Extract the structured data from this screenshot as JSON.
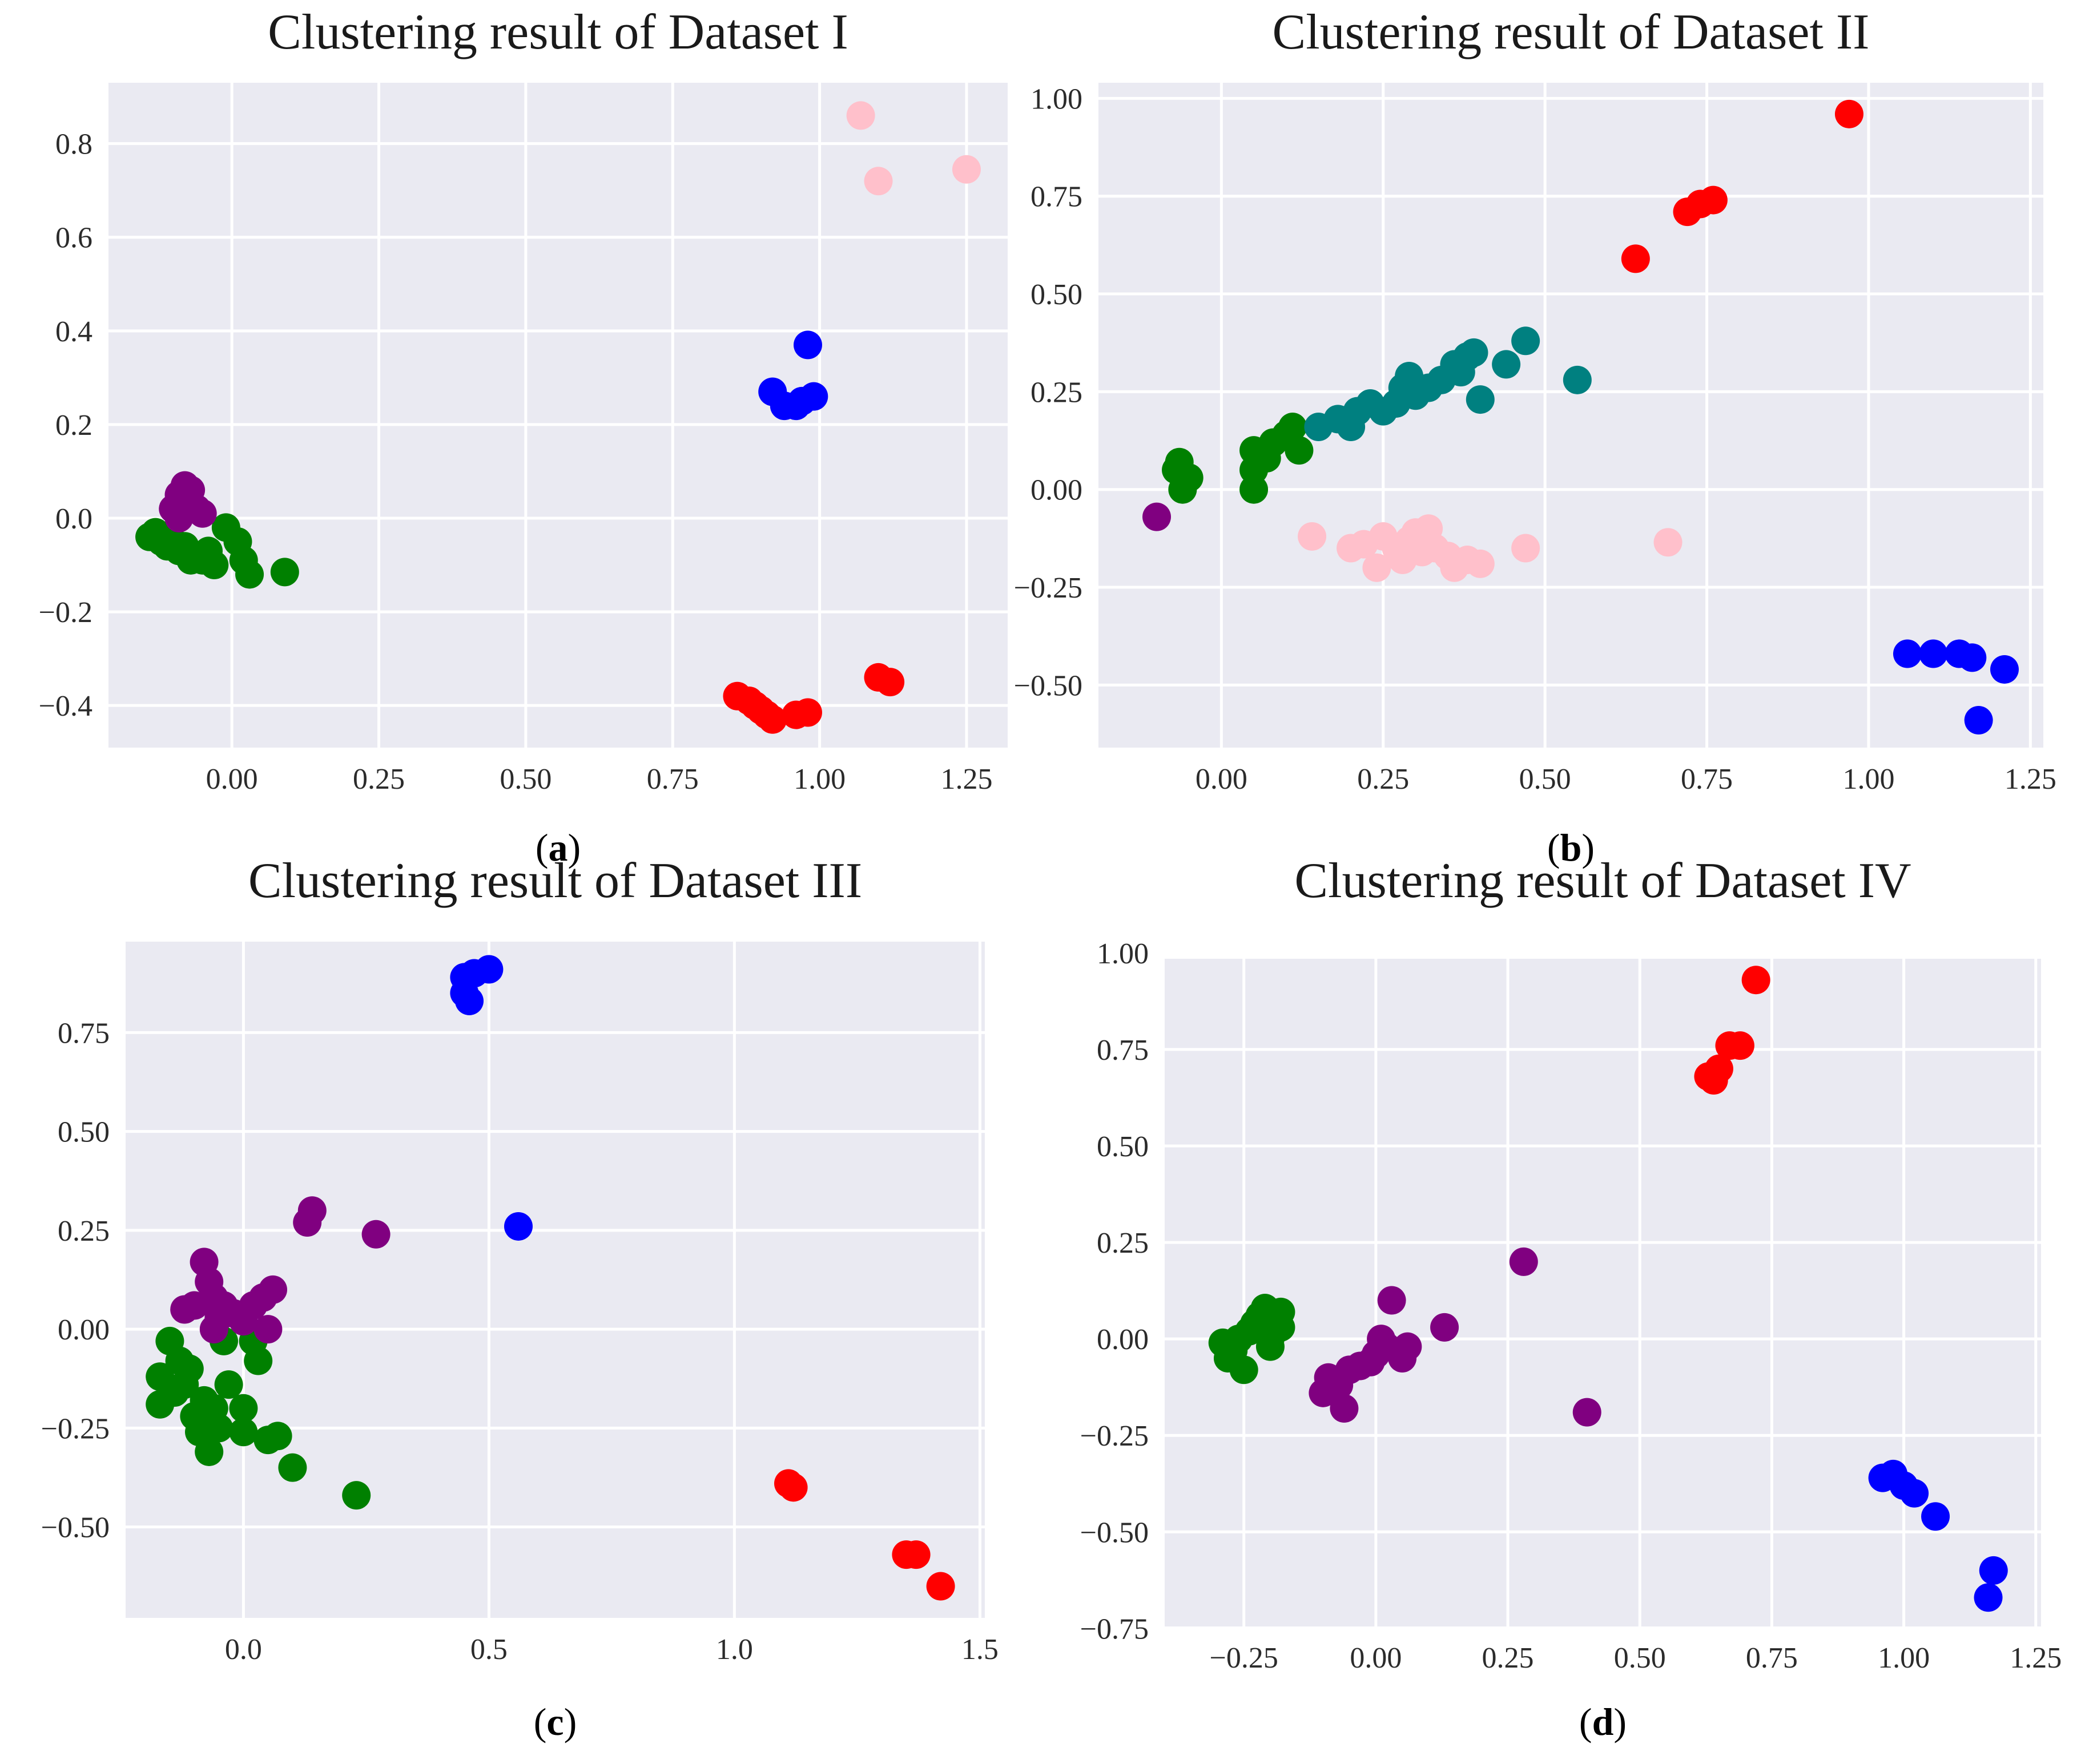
{
  "colors": {
    "background": "#eaeaf2",
    "grid": "#ffffff",
    "green": "#008000",
    "purple": "#800080",
    "blue": "#0000ff",
    "red": "#ff0000",
    "pink": "#ffc0cb",
    "teal": "#008080"
  },
  "chart_data": [
    {
      "type": "scatter",
      "id": "a",
      "title": "Clustering result of Dataset I",
      "caption_letter": "a",
      "xlim": [
        -0.21,
        1.32
      ],
      "ylim": [
        -0.49,
        0.93
      ],
      "xticks": [
        0.0,
        0.25,
        0.5,
        0.75,
        1.0,
        1.25
      ],
      "xtick_labels": [
        "0.00",
        "0.25",
        "0.50",
        "0.75",
        "1.00",
        "1.25"
      ],
      "yticks": [
        -0.4,
        -0.2,
        0.0,
        0.2,
        0.4,
        0.6,
        0.8
      ],
      "ytick_labels": [
        "−0.4",
        "−0.2",
        "0.0",
        "0.2",
        "0.4",
        "0.6",
        "0.8"
      ],
      "series": [
        {
          "name": "green",
          "color": "#008000",
          "points": [
            [
              -0.14,
              -0.04
            ],
            [
              -0.13,
              -0.03
            ],
            [
              -0.12,
              -0.05
            ],
            [
              -0.11,
              -0.06
            ],
            [
              -0.1,
              -0.05
            ],
            [
              -0.09,
              -0.07
            ],
            [
              -0.08,
              -0.06
            ],
            [
              -0.07,
              -0.09
            ],
            [
              -0.06,
              -0.08
            ],
            [
              -0.05,
              -0.09
            ],
            [
              -0.04,
              -0.07
            ],
            [
              -0.03,
              -0.1
            ],
            [
              -0.01,
              -0.02
            ],
            [
              0.01,
              -0.05
            ],
            [
              0.02,
              -0.09
            ],
            [
              0.03,
              -0.12
            ],
            [
              0.09,
              -0.115
            ]
          ]
        },
        {
          "name": "purple",
          "color": "#800080",
          "points": [
            [
              -0.1,
              0.02
            ],
            [
              -0.09,
              0.05
            ],
            [
              -0.08,
              0.07
            ],
            [
              -0.07,
              0.06
            ],
            [
              -0.08,
              0.03
            ],
            [
              -0.06,
              0.02
            ],
            [
              -0.05,
              0.01
            ],
            [
              -0.09,
              0.0
            ]
          ]
        },
        {
          "name": "blue",
          "color": "#0000ff",
          "points": [
            [
              0.92,
              0.27
            ],
            [
              0.94,
              0.24
            ],
            [
              0.96,
              0.24
            ],
            [
              0.97,
              0.25
            ],
            [
              0.98,
              0.37
            ],
            [
              0.99,
              0.26
            ]
          ]
        },
        {
          "name": "red",
          "color": "#ff0000",
          "points": [
            [
              0.86,
              -0.38
            ],
            [
              0.88,
              -0.39
            ],
            [
              0.89,
              -0.4
            ],
            [
              0.9,
              -0.41
            ],
            [
              0.91,
              -0.42
            ],
            [
              0.92,
              -0.43
            ],
            [
              0.96,
              -0.42
            ],
            [
              0.98,
              -0.415
            ],
            [
              1.1,
              -0.34
            ],
            [
              1.12,
              -0.35
            ]
          ]
        },
        {
          "name": "pink",
          "color": "#ffc0cb",
          "points": [
            [
              1.07,
              0.86
            ],
            [
              1.1,
              0.72
            ],
            [
              1.25,
              0.745
            ]
          ]
        }
      ]
    },
    {
      "type": "scatter",
      "id": "b",
      "title": "Clustering result of Dataset II",
      "caption_letter": "b",
      "xlim": [
        -0.19,
        1.27
      ],
      "ylim": [
        -0.66,
        1.04
      ],
      "xticks": [
        0.0,
        0.25,
        0.5,
        0.75,
        1.0,
        1.25
      ],
      "xtick_labels": [
        "0.00",
        "0.25",
        "0.50",
        "0.75",
        "1.00",
        "1.25"
      ],
      "yticks": [
        -0.5,
        -0.25,
        0.0,
        0.25,
        0.5,
        0.75,
        1.0
      ],
      "ytick_labels": [
        "−0.50",
        "−0.25",
        "0.00",
        "0.25",
        "0.50",
        "0.75",
        "1.00"
      ],
      "series": [
        {
          "name": "purple",
          "color": "#800080",
          "points": [
            [
              -0.1,
              -0.07
            ]
          ]
        },
        {
          "name": "green",
          "color": "#008000",
          "points": [
            [
              -0.07,
              0.05
            ],
            [
              -0.065,
              0.07
            ],
            [
              -0.06,
              0.0
            ],
            [
              -0.05,
              0.03
            ],
            [
              0.05,
              0.0
            ],
            [
              0.05,
              0.05
            ],
            [
              0.05,
              0.1
            ],
            [
              0.07,
              0.08
            ],
            [
              0.08,
              0.12
            ],
            [
              0.1,
              0.14
            ],
            [
              0.11,
              0.16
            ],
            [
              0.12,
              0.1
            ]
          ]
        },
        {
          "name": "teal",
          "color": "#008080",
          "points": [
            [
              0.15,
              0.16
            ],
            [
              0.18,
              0.18
            ],
            [
              0.2,
              0.16
            ],
            [
              0.21,
              0.2
            ],
            [
              0.23,
              0.22
            ],
            [
              0.25,
              0.2
            ],
            [
              0.27,
              0.22
            ],
            [
              0.28,
              0.26
            ],
            [
              0.29,
              0.29
            ],
            [
              0.3,
              0.24
            ],
            [
              0.32,
              0.26
            ],
            [
              0.34,
              0.28
            ],
            [
              0.36,
              0.32
            ],
            [
              0.37,
              0.3
            ],
            [
              0.38,
              0.34
            ],
            [
              0.39,
              0.35
            ],
            [
              0.4,
              0.23
            ],
            [
              0.44,
              0.32
            ],
            [
              0.47,
              0.38
            ],
            [
              0.55,
              0.28
            ]
          ]
        },
        {
          "name": "pink",
          "color": "#ffc0cb",
          "points": [
            [
              0.14,
              -0.12
            ],
            [
              0.2,
              -0.15
            ],
            [
              0.22,
              -0.14
            ],
            [
              0.24,
              -0.2
            ],
            [
              0.25,
              -0.12
            ],
            [
              0.27,
              -0.15
            ],
            [
              0.28,
              -0.18
            ],
            [
              0.29,
              -0.13
            ],
            [
              0.3,
              -0.11
            ],
            [
              0.31,
              -0.16
            ],
            [
              0.32,
              -0.1
            ],
            [
              0.33,
              -0.15
            ],
            [
              0.35,
              -0.17
            ],
            [
              0.36,
              -0.2
            ],
            [
              0.38,
              -0.18
            ],
            [
              0.4,
              -0.19
            ],
            [
              0.47,
              -0.15
            ],
            [
              0.69,
              -0.135
            ]
          ]
        },
        {
          "name": "red",
          "color": "#ff0000",
          "points": [
            [
              0.64,
              0.59
            ],
            [
              0.72,
              0.71
            ],
            [
              0.74,
              0.73
            ],
            [
              0.76,
              0.74
            ],
            [
              0.97,
              0.96
            ]
          ]
        },
        {
          "name": "blue",
          "color": "#0000ff",
          "points": [
            [
              1.06,
              -0.42
            ],
            [
              1.1,
              -0.42
            ],
            [
              1.14,
              -0.42
            ],
            [
              1.16,
              -0.43
            ],
            [
              1.17,
              -0.59
            ],
            [
              1.21,
              -0.46
            ]
          ]
        }
      ]
    },
    {
      "type": "scatter",
      "id": "c",
      "title": "Clustering result of Dataset III",
      "caption_letter": "c",
      "xlim": [
        -0.24,
        1.51
      ],
      "ylim": [
        -0.73,
        0.98
      ],
      "xticks": [
        0.0,
        0.5,
        1.0,
        1.5
      ],
      "xtick_labels": [
        "0.0",
        "0.5",
        "1.0",
        "1.5"
      ],
      "yticks": [
        -0.5,
        -0.25,
        0.0,
        0.25,
        0.5,
        0.75
      ],
      "ytick_labels": [
        "−0.50",
        "−0.25",
        "0.00",
        "0.25",
        "0.50",
        "0.75"
      ],
      "series": [
        {
          "name": "green",
          "color": "#008000",
          "points": [
            [
              -0.17,
              -0.12
            ],
            [
              -0.17,
              -0.19
            ],
            [
              -0.15,
              -0.03
            ],
            [
              -0.14,
              -0.16
            ],
            [
              -0.13,
              -0.08
            ],
            [
              -0.12,
              -0.14
            ],
            [
              -0.11,
              -0.1
            ],
            [
              -0.1,
              -0.22
            ],
            [
              -0.09,
              -0.26
            ],
            [
              -0.08,
              -0.18
            ],
            [
              -0.07,
              -0.31
            ],
            [
              -0.06,
              -0.2
            ],
            [
              -0.05,
              -0.25
            ],
            [
              -0.04,
              -0.03
            ],
            [
              -0.03,
              -0.14
            ],
            [
              0.0,
              -0.2
            ],
            [
              0.0,
              -0.26
            ],
            [
              0.02,
              -0.03
            ],
            [
              0.03,
              -0.08
            ],
            [
              0.05,
              -0.28
            ],
            [
              0.07,
              -0.27
            ],
            [
              0.1,
              -0.35
            ],
            [
              0.23,
              -0.42
            ]
          ]
        },
        {
          "name": "purple",
          "color": "#800080",
          "points": [
            [
              -0.12,
              0.05
            ],
            [
              -0.1,
              0.06
            ],
            [
              -0.08,
              0.17
            ],
            [
              -0.07,
              0.12
            ],
            [
              -0.06,
              0.08
            ],
            [
              -0.06,
              0.0
            ],
            [
              -0.05,
              0.03
            ],
            [
              -0.04,
              0.06
            ],
            [
              -0.02,
              0.04
            ],
            [
              0.0,
              0.02
            ],
            [
              0.02,
              0.06
            ],
            [
              0.04,
              0.08
            ],
            [
              0.05,
              0.0
            ],
            [
              0.06,
              0.1
            ],
            [
              0.13,
              0.27
            ],
            [
              0.14,
              0.3
            ],
            [
              0.27,
              0.24
            ]
          ]
        },
        {
          "name": "blue",
          "color": "#0000ff",
          "points": [
            [
              0.45,
              0.85
            ],
            [
              0.45,
              0.89
            ],
            [
              0.46,
              0.83
            ],
            [
              0.47,
              0.9
            ],
            [
              0.5,
              0.91
            ],
            [
              0.56,
              0.26
            ]
          ]
        },
        {
          "name": "red",
          "color": "#ff0000",
          "points": [
            [
              1.11,
              -0.39
            ],
            [
              1.12,
              -0.4
            ],
            [
              1.35,
              -0.57
            ],
            [
              1.37,
              -0.57
            ],
            [
              1.42,
              -0.65
            ]
          ]
        }
      ]
    },
    {
      "type": "scatter",
      "id": "d",
      "title": "Clustering result of Dataset IV",
      "caption_letter": "d",
      "xlim": [
        -0.4,
        1.26
      ],
      "ylim": [
        -0.745,
        0.985
      ],
      "xticks": [
        -0.25,
        0.0,
        0.25,
        0.5,
        0.75,
        1.0,
        1.25
      ],
      "xtick_labels": [
        "−0.25",
        "0.00",
        "0.25",
        "0.50",
        "0.75",
        "1.00",
        "1.25"
      ],
      "yticks": [
        -0.75,
        -0.5,
        -0.25,
        0.0,
        0.25,
        0.5,
        0.75,
        1.0
      ],
      "ytick_labels": [
        "−0.75",
        "−0.50",
        "−0.25",
        "0.00",
        "0.25",
        "0.50",
        "0.75",
        "1.00"
      ],
      "series": [
        {
          "name": "green",
          "color": "#008000",
          "points": [
            [
              -0.29,
              -0.01
            ],
            [
              -0.28,
              -0.05
            ],
            [
              -0.27,
              -0.03
            ],
            [
              -0.26,
              0.0
            ],
            [
              -0.25,
              -0.08
            ],
            [
              -0.24,
              0.02
            ],
            [
              -0.23,
              0.04
            ],
            [
              -0.22,
              0.06
            ],
            [
              -0.21,
              0.08
            ],
            [
              -0.2,
              0.0
            ],
            [
              -0.2,
              -0.02
            ],
            [
              -0.19,
              0.05
            ],
            [
              -0.18,
              0.07
            ],
            [
              -0.18,
              0.03
            ]
          ]
        },
        {
          "name": "purple",
          "color": "#800080",
          "points": [
            [
              -0.1,
              -0.14
            ],
            [
              -0.09,
              -0.1
            ],
            [
              -0.07,
              -0.12
            ],
            [
              -0.06,
              -0.18
            ],
            [
              -0.05,
              -0.08
            ],
            [
              -0.03,
              -0.07
            ],
            [
              -0.01,
              -0.06
            ],
            [
              0.0,
              -0.04
            ],
            [
              0.01,
              0.0
            ],
            [
              0.02,
              -0.02
            ],
            [
              0.03,
              0.1
            ],
            [
              0.05,
              -0.05
            ],
            [
              0.06,
              -0.02
            ],
            [
              0.13,
              0.03
            ],
            [
              0.28,
              0.2
            ],
            [
              0.4,
              -0.19
            ]
          ]
        },
        {
          "name": "red",
          "color": "#ff0000",
          "points": [
            [
              0.63,
              0.68
            ],
            [
              0.64,
              0.67
            ],
            [
              0.65,
              0.7
            ],
            [
              0.67,
              0.76
            ],
            [
              0.69,
              0.76
            ],
            [
              0.72,
              0.93
            ]
          ]
        },
        {
          "name": "blue",
          "color": "#0000ff",
          "points": [
            [
              0.96,
              -0.36
            ],
            [
              0.98,
              -0.35
            ],
            [
              1.0,
              -0.38
            ],
            [
              1.02,
              -0.4
            ],
            [
              1.06,
              -0.46
            ],
            [
              1.16,
              -0.67
            ],
            [
              1.17,
              -0.6
            ]
          ]
        }
      ]
    }
  ]
}
